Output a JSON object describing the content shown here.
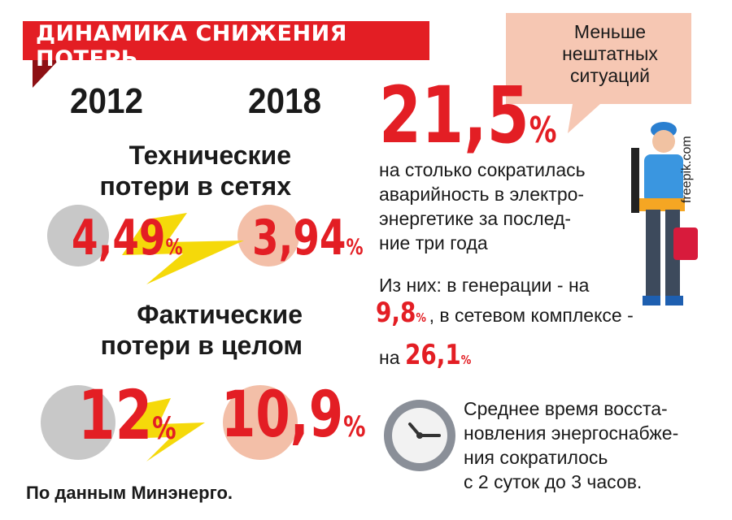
{
  "header": {
    "title": "ДИНАМИКА СНИЖЕНИЯ ПОТЕРЬ"
  },
  "years": {
    "left": "2012",
    "right": "2018"
  },
  "chart_data": [
    {
      "type": "bar",
      "title": "Технические потери в сетях",
      "categories": [
        "2012",
        "2018"
      ],
      "values": [
        4.49,
        3.94
      ],
      "labels": [
        "4,49",
        "3,94"
      ],
      "unit": "%"
    },
    {
      "type": "bar",
      "title": "Фактические потери в целом",
      "categories": [
        "2012",
        "2018"
      ],
      "values": [
        12,
        10.9
      ],
      "labels": [
        "12",
        "10,9"
      ],
      "unit": "%"
    }
  ],
  "sections": {
    "technical": {
      "line1": "Технические",
      "line2": "потери в сетях",
      "v2012": "4,49",
      "v2018": "3,94"
    },
    "actual": {
      "line1": "Фактические",
      "line2": "потери в целом",
      "v2012": "12",
      "v2018": "10,9"
    }
  },
  "pct": "%",
  "speech": {
    "line1": "Меньше",
    "line2": "нештатных",
    "line3": "ситуаций"
  },
  "accident": {
    "value": "21,5",
    "line1": "на столько сократилась",
    "line2": "аварийность в электро-",
    "line3": "энергетике за послед-",
    "line4": "ние три года"
  },
  "breakdown": {
    "intro": "Из них: в генерации - на",
    "generation_value": "9,8",
    "network_text": ", в сетевом комплексе -",
    "na": "на",
    "network_value": "26,1"
  },
  "restore": {
    "line1": "Среднее время восста-",
    "line2": "новления энергоснабже-",
    "line3": "ния сократилось",
    "line4": "с 2 суток до 3 часов."
  },
  "source": "По данным Минэнерго.",
  "credit": "freepik.com",
  "colors": {
    "red": "#e31e24",
    "yellow": "#f5d90a",
    "grey": "#c8c8c8",
    "peach": "#f3bfa8",
    "bubble": "#f6c7b3"
  }
}
